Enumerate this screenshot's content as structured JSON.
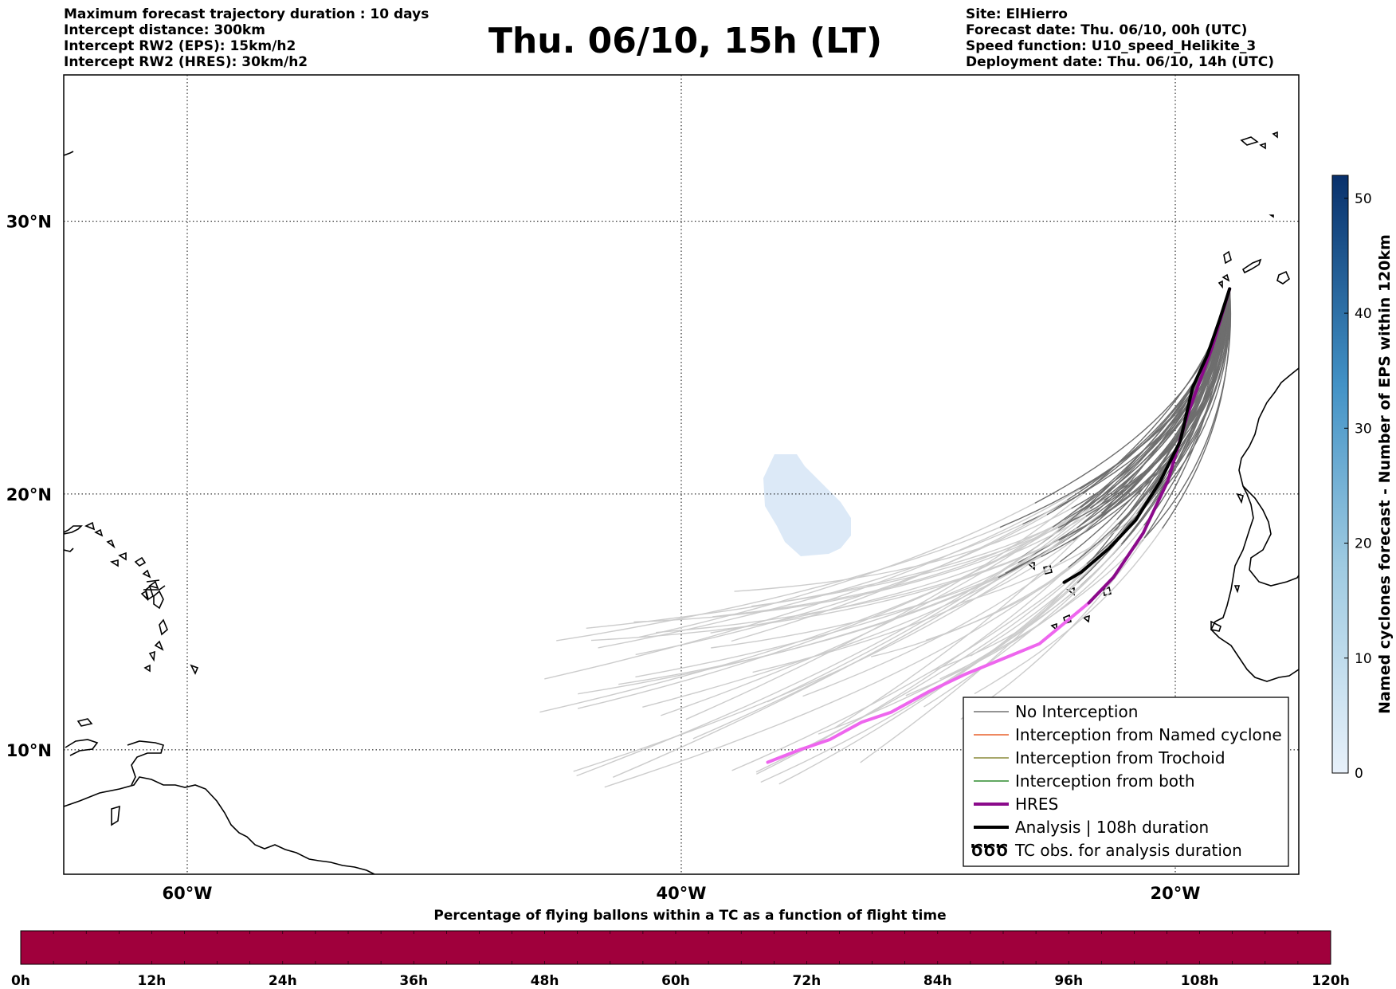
{
  "header": {
    "left_lines": [
      "Maximum forecast trajectory duration : 10 days",
      "Intercept distance: 300km",
      "Intercept RW2 (EPS):  15km/h2",
      "Intercept RW2 (HRES): 30km/h2"
    ],
    "title": "Thu. 06/10, 15h (LT)",
    "right_lines": [
      "Site: ElHierro",
      "Forecast date: Thu. 06/10, 00h (UTC)",
      "Speed function: U10_speed_Helikite_3",
      "Deployment date: Thu. 06/10, 14h (UTC)"
    ]
  },
  "map": {
    "lon_range": [
      -65,
      -15
    ],
    "lat_range": [
      5,
      35
    ],
    "grid": true,
    "lon_ticks": [
      {
        "value": -60,
        "label": "60°W"
      },
      {
        "value": -40,
        "label": "40°W"
      },
      {
        "value": -20,
        "label": "20°W"
      }
    ],
    "lat_ticks": [
      {
        "value": 10,
        "label": "10°N"
      },
      {
        "value": 20,
        "label": "20°N"
      },
      {
        "value": 30,
        "label": "30°N"
      }
    ]
  },
  "colorbar_right": {
    "title": "Named cyclones forecast - Number of EPS within 120km",
    "range": [
      0,
      52
    ],
    "ticks": [
      "0",
      "10",
      "20",
      "30",
      "40",
      "50"
    ],
    "tick_values": [
      0,
      10,
      20,
      30,
      40,
      50
    ],
    "color_low": "#e8f1fa",
    "color_high": "#08306b"
  },
  "legend": {
    "placement": "lower-right",
    "entries": [
      {
        "label": "No Interception",
        "color": "#707070",
        "style": "thin-line"
      },
      {
        "label": "Interception from Named cyclone",
        "color": "#e8602c",
        "style": "thin-line"
      },
      {
        "label": "Interception from Trochoid",
        "color": "#8a8a3a",
        "style": "thin-line"
      },
      {
        "label": "Interception from both",
        "color": "#2e8b2e",
        "style": "thin-line"
      },
      {
        "label": "HRES",
        "color": "#8b0a8b",
        "style": "thick-line"
      },
      {
        "label": "Analysis | 108h duration",
        "color": "#000000",
        "style": "thick-line"
      },
      {
        "label": "TC obs. for analysis duration",
        "color": "#000000",
        "style": "cyclone-symbols",
        "symbol": "ԾԾԾ"
      }
    ]
  },
  "bottom_bar": {
    "title": "Percentage of flying ballons within a TC as a function of flight time",
    "ticks": [
      "0h",
      "12h",
      "24h",
      "36h",
      "48h",
      "60h",
      "72h",
      "84h",
      "96h",
      "108h",
      "120h"
    ],
    "fill_color": "#a0003c"
  },
  "colors": {
    "eps_dark": "#6e6e6e",
    "eps_light": "#cccccc",
    "hres_dark": "#8b0a8b",
    "hres_light": "#ee66ee",
    "analysis": "#000000",
    "cyclone_prob": "#dce9f7"
  }
}
